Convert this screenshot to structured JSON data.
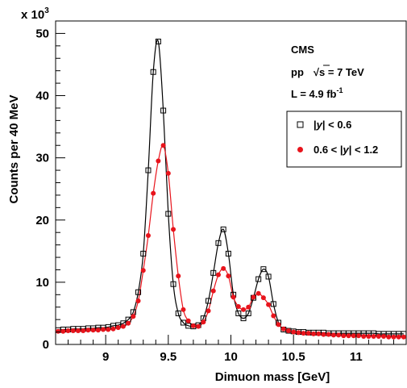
{
  "chart_data": {
    "type": "scatter",
    "xlabel": "Dimuon mass [GeV]",
    "ylabel": "Counts per 40 MeV",
    "y_multiplier": "x 10",
    "y_multiplier_exp": "3",
    "xlim": [
      8.6,
      11.4
    ],
    "ylim": [
      0,
      52
    ],
    "x_ticks": [
      9,
      9.5,
      10,
      10.5,
      11
    ],
    "x_tick_labels": [
      "9",
      "9.5",
      "10",
      "10.5",
      "11"
    ],
    "y_ticks": [
      0,
      10,
      20,
      30,
      40,
      50
    ],
    "y_tick_labels": [
      "0",
      "10",
      "20",
      "30",
      "40",
      "50"
    ],
    "grid": false,
    "legend_position": "right",
    "annotations": {
      "experiment": "CMS",
      "beam": "pp",
      "sqrt_symbol": "√s",
      "energy": " = 7 TeV",
      "lumi_prefix": "L = 4.9 fb",
      "lumi_exp": "-1"
    },
    "series": [
      {
        "name_parts": [
          "|",
          "y",
          "| < 0.6"
        ],
        "marker": "open-square",
        "color": "#000000",
        "x": [
          8.62,
          8.66,
          8.7,
          8.74,
          8.78,
          8.82,
          8.86,
          8.9,
          8.94,
          8.98,
          9.02,
          9.06,
          9.1,
          9.14,
          9.18,
          9.22,
          9.26,
          9.3,
          9.34,
          9.38,
          9.42,
          9.46,
          9.5,
          9.54,
          9.58,
          9.62,
          9.66,
          9.7,
          9.74,
          9.78,
          9.82,
          9.86,
          9.9,
          9.94,
          9.98,
          10.02,
          10.06,
          10.1,
          10.14,
          10.18,
          10.22,
          10.26,
          10.3,
          10.34,
          10.38,
          10.42,
          10.46,
          10.5,
          10.54,
          10.58,
          10.62,
          10.66,
          10.7,
          10.74,
          10.78,
          10.82,
          10.86,
          10.9,
          10.94,
          10.98,
          11.02,
          11.06,
          11.1,
          11.14,
          11.18,
          11.22,
          11.26,
          11.3,
          11.34,
          11.38
        ],
        "values": [
          2.3,
          2.4,
          2.4,
          2.5,
          2.5,
          2.5,
          2.6,
          2.6,
          2.7,
          2.7,
          2.8,
          3.0,
          3.1,
          3.4,
          4.0,
          5.2,
          8.4,
          14.6,
          28.0,
          43.8,
          48.7,
          37.6,
          21.0,
          9.7,
          5.0,
          3.5,
          3.0,
          2.9,
          3.1,
          4.2,
          7.0,
          11.5,
          16.3,
          18.5,
          14.6,
          8.0,
          5.0,
          4.2,
          5.0,
          7.5,
          10.5,
          12.1,
          10.9,
          6.5,
          3.5,
          2.4,
          2.2,
          2.1,
          2.0,
          2.0,
          1.9,
          1.9,
          1.9,
          1.9,
          1.8,
          1.8,
          1.8,
          1.8,
          1.8,
          1.8,
          1.8,
          1.8,
          1.8,
          1.8,
          1.7,
          1.7,
          1.7,
          1.7,
          1.7,
          1.7
        ]
      },
      {
        "name_parts": [
          "0.6 < |",
          "y",
          "| < 1.2"
        ],
        "marker": "filled-circle",
        "color": "#e8141c",
        "x": [
          8.62,
          8.66,
          8.7,
          8.74,
          8.78,
          8.82,
          8.86,
          8.9,
          8.94,
          8.98,
          9.02,
          9.06,
          9.1,
          9.14,
          9.18,
          9.22,
          9.26,
          9.3,
          9.34,
          9.38,
          9.42,
          9.46,
          9.5,
          9.54,
          9.58,
          9.62,
          9.66,
          9.7,
          9.74,
          9.78,
          9.82,
          9.86,
          9.9,
          9.94,
          9.98,
          10.02,
          10.06,
          10.1,
          10.14,
          10.18,
          10.22,
          10.26,
          10.3,
          10.34,
          10.38,
          10.42,
          10.46,
          10.5,
          10.54,
          10.58,
          10.62,
          10.66,
          10.7,
          10.74,
          10.78,
          10.82,
          10.86,
          10.9,
          10.94,
          10.98,
          11.02,
          11.06,
          11.1,
          11.14,
          11.18,
          11.22,
          11.26,
          11.3,
          11.34,
          11.38
        ],
        "values": [
          2.1,
          2.1,
          2.2,
          2.2,
          2.2,
          2.2,
          2.3,
          2.3,
          2.3,
          2.4,
          2.4,
          2.5,
          2.7,
          2.9,
          3.4,
          4.5,
          7.0,
          11.9,
          17.5,
          24.3,
          29.5,
          32.0,
          27.5,
          18.5,
          11.0,
          5.6,
          3.8,
          3.0,
          2.9,
          3.6,
          5.4,
          8.6,
          11.2,
          12.2,
          11.0,
          7.6,
          6.1,
          5.6,
          6.0,
          7.6,
          8.2,
          7.5,
          6.4,
          4.6,
          3.2,
          2.5,
          2.2,
          2.0,
          1.9,
          1.8,
          1.8,
          1.7,
          1.7,
          1.6,
          1.6,
          1.5,
          1.5,
          1.4,
          1.4,
          1.4,
          1.4,
          1.3,
          1.3,
          1.3,
          1.3,
          1.3,
          1.2,
          1.2,
          1.2,
          1.2
        ]
      }
    ]
  }
}
